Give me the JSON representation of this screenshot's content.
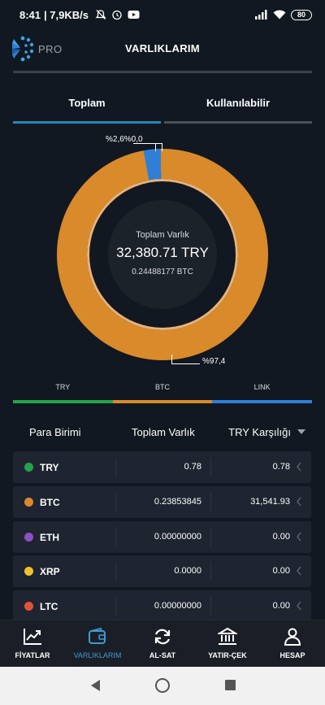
{
  "status_bar": {
    "time": "8:41",
    "network": "| 7,9KB/s",
    "battery": "80"
  },
  "header": {
    "pro_label": "PRO",
    "title": "VARLIKLARIM"
  },
  "tabs": [
    {
      "label": "Toplam",
      "active": true
    },
    {
      "label": "Kullanılabilir",
      "active": false
    }
  ],
  "donut": {
    "center_label": "Toplam Varlık",
    "total_try": "32,380.71 TRY",
    "total_btc": "0.24488177 BTC",
    "top_labels": "%2,6%0,0",
    "bottom_label": "%97,4",
    "segments": [
      {
        "name": "TRY",
        "percent": 0.0,
        "color": "#27a745"
      },
      {
        "name": "BTC",
        "percent": 97.4,
        "color": "#d98a2a"
      },
      {
        "name": "LINK",
        "percent": 2.6,
        "color": "#2f7fd6"
      }
    ]
  },
  "legend": [
    {
      "label": "TRY",
      "color": "#22a34a"
    },
    {
      "label": "BTC",
      "color": "#d98a2a"
    },
    {
      "label": "LINK",
      "color": "#2f7fd6"
    }
  ],
  "table": {
    "col_currency": "Para Birimi",
    "col_total": "Toplam Varlık",
    "col_try": "TRY Karşılığı",
    "rows": [
      {
        "symbol": "TRY",
        "amount": "0.78",
        "value": "0.78",
        "color": "#22a34a"
      },
      {
        "symbol": "BTC",
        "amount": "0.23853845",
        "value": "31,541.93",
        "color": "#d98a2a"
      },
      {
        "symbol": "ETH",
        "amount": "0.00000000",
        "value": "0.00",
        "color": "#8a4fc4"
      },
      {
        "symbol": "XRP",
        "amount": "0.0000",
        "value": "0.00",
        "color": "#f1c02c"
      },
      {
        "symbol": "LTC",
        "amount": "0.00000000",
        "value": "0.00",
        "color": "#e0523a"
      }
    ]
  },
  "bottom_nav": [
    {
      "label": "FİYATLAR",
      "icon": "chart-icon",
      "active": false
    },
    {
      "label": "VARLIKLARIM",
      "icon": "wallet-icon",
      "active": true
    },
    {
      "label": "AL-SAT",
      "icon": "exchange-icon",
      "active": false
    },
    {
      "label": "YATIR-ÇEK",
      "icon": "bank-icon",
      "active": false
    },
    {
      "label": "HESAP",
      "icon": "user-icon",
      "active": false
    }
  ]
}
